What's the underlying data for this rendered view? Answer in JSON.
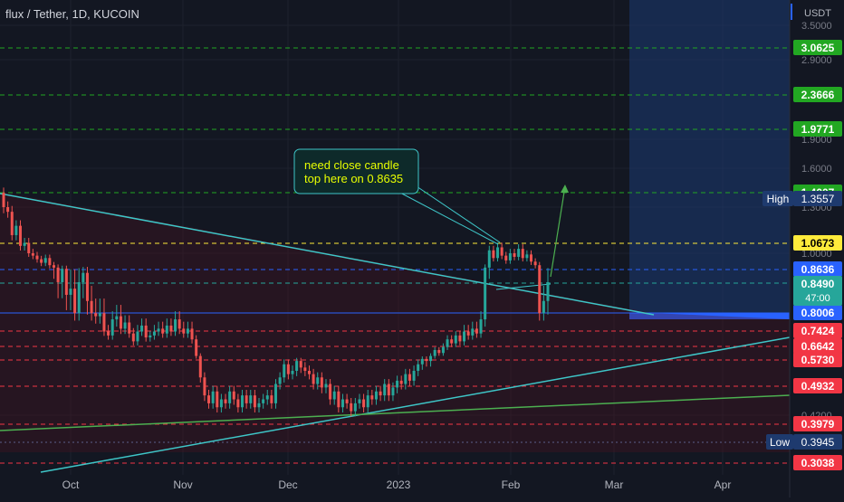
{
  "header": {
    "symbol": "flux / Tether, 1D, KUCOIN"
  },
  "colors": {
    "background": "#131722",
    "up": "#26a69a",
    "down": "#ef5350",
    "grid": "#1e222d",
    "axis_text": "#b2b5be",
    "cyan_line": "#3ec6c8",
    "green_line": "#4caf50",
    "projection_box": "#1c3a72",
    "annotation_text": "#e8ff00"
  },
  "chart_data": {
    "type": "candlestick",
    "currency": "USDT",
    "x_ticks": [
      "Oct",
      "Nov",
      "Dec",
      "2023",
      "Feb",
      "Mar",
      "Apr"
    ],
    "y_ticks": [
      "3.5000",
      "2.9000",
      "1.9000",
      "1.6000",
      "1.3000",
      "1.0000",
      "0.4200"
    ],
    "grid": true,
    "price_levels": [
      {
        "label": "3.0625",
        "color": "#22a722",
        "style": "dashed"
      },
      {
        "label": "2.3666",
        "color": "#22a722",
        "style": "dashed"
      },
      {
        "label": "1.9771",
        "color": "#22a722",
        "style": "dashed"
      },
      {
        "label": "1.4007",
        "color": "#22a722",
        "style": "dashed"
      },
      {
        "label": "1.0673",
        "color": "#ffeb3b",
        "style": "dashed"
      },
      {
        "label": "0.8636",
        "color": "#2962ff",
        "style": "dashed"
      },
      {
        "label": "0.8490",
        "color": "#26a69a",
        "style": "dashed"
      },
      {
        "label": "0.8006",
        "color": "#2962ff",
        "style": "solid"
      },
      {
        "label": "0.7424",
        "color": "#f23645",
        "style": "dashed"
      },
      {
        "label": "0.6642",
        "color": "#f23645",
        "style": "dashed"
      },
      {
        "label": "0.5730",
        "color": "#f23645",
        "style": "dashed"
      },
      {
        "label": "0.4932",
        "color": "#f23645",
        "style": "dashed"
      },
      {
        "label": "0.3979",
        "color": "#f23645",
        "style": "dashed"
      },
      {
        "label": "0.3038",
        "color": "#f23645",
        "style": "dashed"
      }
    ],
    "current_price": {
      "value": "0.8490",
      "countdown": "47:00"
    },
    "high": {
      "label": "High",
      "value": "1.3557"
    },
    "low": {
      "label": "Low",
      "value": "0.3945"
    },
    "annotation": {
      "line1": "need close candle",
      "line2": "top here on 0.8635"
    },
    "candles": [
      [
        1.4,
        1.3
      ],
      [
        1.3,
        1.27
      ],
      [
        1.27,
        1.12
      ],
      [
        1.12,
        1.18
      ],
      [
        1.18,
        1.05
      ],
      [
        1.05,
        1.07
      ],
      [
        1.07,
        1.0
      ],
      [
        1.0,
        0.98
      ],
      [
        0.98,
        0.95
      ],
      [
        0.95,
        0.92
      ],
      [
        0.92,
        0.96
      ],
      [
        0.96,
        0.9
      ],
      [
        0.9,
        0.88
      ],
      [
        0.88,
        0.85
      ],
      [
        0.85,
        0.87
      ],
      [
        0.87,
        0.83
      ],
      [
        0.83,
        0.84
      ],
      [
        0.84,
        0.8
      ],
      [
        0.8,
        0.85
      ],
      [
        0.85,
        0.86
      ],
      [
        0.86,
        0.82
      ],
      [
        0.82,
        0.8
      ],
      [
        0.8,
        0.79
      ],
      [
        0.79,
        0.8
      ],
      [
        0.8,
        0.74
      ],
      [
        0.74,
        0.72
      ],
      [
        0.72,
        0.78
      ],
      [
        0.78,
        0.79
      ],
      [
        0.79,
        0.75
      ],
      [
        0.75,
        0.77
      ],
      [
        0.77,
        0.73
      ],
      [
        0.73,
        0.69
      ],
      [
        0.69,
        0.74
      ],
      [
        0.74,
        0.76
      ],
      [
        0.76,
        0.71
      ],
      [
        0.71,
        0.72
      ],
      [
        0.72,
        0.74
      ],
      [
        0.74,
        0.75
      ],
      [
        0.75,
        0.73
      ],
      [
        0.73,
        0.76
      ],
      [
        0.76,
        0.74
      ],
      [
        0.74,
        0.78
      ],
      [
        0.78,
        0.75
      ],
      [
        0.75,
        0.73
      ],
      [
        0.73,
        0.75
      ],
      [
        0.75,
        0.7
      ],
      [
        0.7,
        0.6
      ],
      [
        0.6,
        0.52
      ],
      [
        0.52,
        0.47
      ],
      [
        0.47,
        0.45
      ],
      [
        0.45,
        0.48
      ],
      [
        0.48,
        0.44
      ],
      [
        0.44,
        0.46
      ],
      [
        0.46,
        0.45
      ],
      [
        0.45,
        0.48
      ],
      [
        0.48,
        0.46
      ],
      [
        0.46,
        0.44
      ],
      [
        0.44,
        0.47
      ],
      [
        0.47,
        0.45
      ],
      [
        0.45,
        0.47
      ],
      [
        0.47,
        0.44
      ],
      [
        0.44,
        0.45
      ],
      [
        0.45,
        0.46
      ],
      [
        0.46,
        0.47
      ],
      [
        0.47,
        0.45
      ],
      [
        0.45,
        0.5
      ],
      [
        0.5,
        0.52
      ],
      [
        0.52,
        0.56
      ],
      [
        0.56,
        0.53
      ],
      [
        0.53,
        0.54
      ],
      [
        0.54,
        0.57
      ],
      [
        0.57,
        0.55
      ],
      [
        0.55,
        0.54
      ],
      [
        0.54,
        0.53
      ],
      [
        0.53,
        0.5
      ],
      [
        0.5,
        0.52
      ],
      [
        0.52,
        0.49
      ],
      [
        0.49,
        0.5
      ],
      [
        0.5,
        0.46
      ],
      [
        0.46,
        0.48
      ],
      [
        0.48,
        0.44
      ],
      [
        0.44,
        0.46
      ],
      [
        0.46,
        0.45
      ],
      [
        0.45,
        0.43
      ],
      [
        0.43,
        0.45
      ],
      [
        0.45,
        0.46
      ],
      [
        0.46,
        0.44
      ],
      [
        0.44,
        0.47
      ],
      [
        0.47,
        0.46
      ],
      [
        0.46,
        0.48
      ],
      [
        0.48,
        0.47
      ],
      [
        0.47,
        0.5
      ],
      [
        0.5,
        0.47
      ],
      [
        0.47,
        0.49
      ],
      [
        0.49,
        0.51
      ],
      [
        0.51,
        0.5
      ],
      [
        0.5,
        0.53
      ],
      [
        0.53,
        0.51
      ],
      [
        0.51,
        0.54
      ],
      [
        0.54,
        0.56
      ],
      [
        0.56,
        0.58
      ],
      [
        0.58,
        0.57
      ],
      [
        0.57,
        0.6
      ],
      [
        0.6,
        0.64
      ],
      [
        0.64,
        0.62
      ],
      [
        0.62,
        0.66
      ],
      [
        0.66,
        0.7
      ],
      [
        0.7,
        0.68
      ],
      [
        0.68,
        0.72
      ],
      [
        0.72,
        0.69
      ],
      [
        0.69,
        0.74
      ],
      [
        0.74,
        0.72
      ],
      [
        0.72,
        0.75
      ],
      [
        0.75,
        0.73
      ],
      [
        0.73,
        0.78
      ],
      [
        0.78,
        0.88
      ],
      [
        0.88,
        1.02
      ],
      [
        1.02,
        0.96
      ],
      [
        0.96,
        1.04
      ],
      [
        1.04,
        0.98
      ],
      [
        0.98,
        0.94
      ],
      [
        0.94,
        1.0
      ],
      [
        1.0,
        0.97
      ],
      [
        0.97,
        1.03
      ],
      [
        1.03,
        0.96
      ],
      [
        0.96,
        0.99
      ],
      [
        0.99,
        0.93
      ],
      [
        0.93,
        0.9
      ],
      [
        0.9,
        0.8
      ],
      [
        0.8,
        0.82
      ],
      [
        0.82,
        0.85
      ]
    ]
  }
}
